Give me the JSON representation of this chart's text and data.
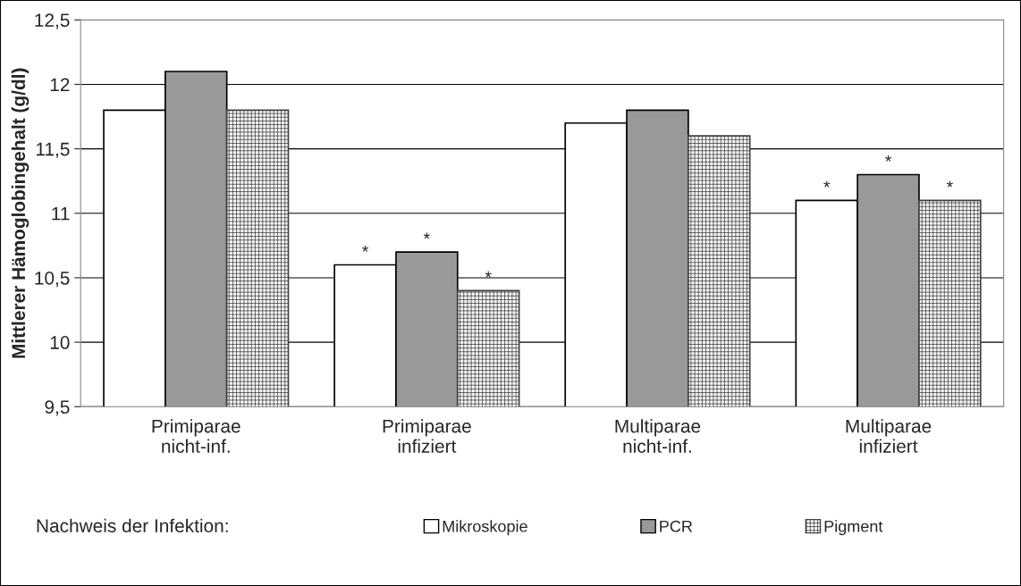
{
  "chart_data": {
    "type": "bar",
    "categories": [
      "Primiparae\nnicht-inf.",
      "Primiparae\ninfiziert",
      "Multiparae\nnicht-inf.",
      "Multiparae\ninfiziert"
    ],
    "series": [
      {
        "name": "Mikroskopie",
        "color": "#ffffff",
        "values": [
          11.8,
          10.6,
          11.7,
          11.1
        ],
        "value_labels": [
          null,
          "*",
          null,
          "*"
        ]
      },
      {
        "name": "PCR",
        "color": "#999999",
        "values": [
          12.1,
          10.7,
          11.8,
          11.3
        ],
        "value_labels": [
          null,
          "*",
          null,
          "*"
        ]
      },
      {
        "name": "Pigment",
        "color": "#404040",
        "values": [
          11.8,
          10.4,
          11.6,
          11.1
        ],
        "value_labels": [
          null,
          "*",
          null,
          "*"
        ]
      }
    ],
    "ylabel": "Mittlerer Hämoglobingehalt (g/dl)",
    "ylim": [
      9.5,
      12.5
    ],
    "yticks": [
      {
        "value": 9.5,
        "label": "9,5"
      },
      {
        "value": 10,
        "label": "10"
      },
      {
        "value": 10.5,
        "label": "10,5"
      },
      {
        "value": 11,
        "label": "11"
      },
      {
        "value": 11.5,
        "label": "11,5"
      },
      {
        "value": 12,
        "label": "12"
      },
      {
        "value": 12.5,
        "label": "12,5"
      }
    ],
    "grid": "y",
    "legend": "bottom",
    "legend_title": "Nachweis der Infektion:"
  }
}
